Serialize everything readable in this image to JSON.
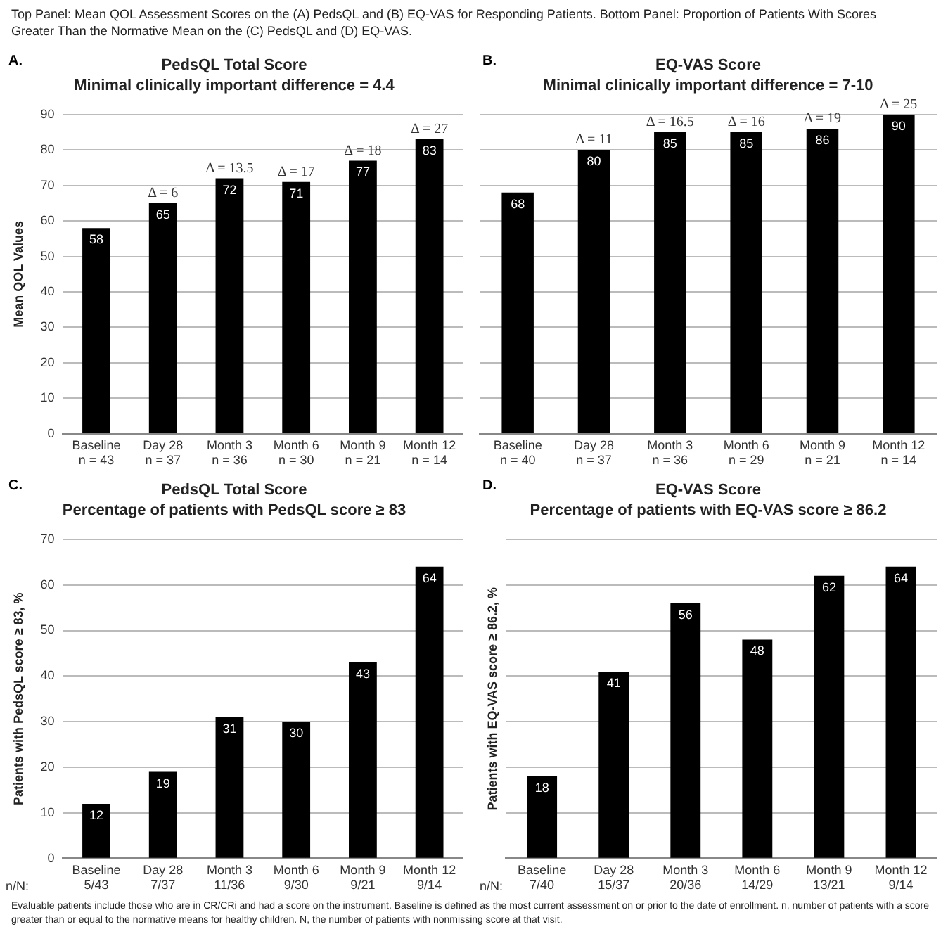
{
  "chart_data": [
    {
      "type": "bar",
      "title": "PedsQL Total Score",
      "subtitle": "Minimal clinically important difference = 4.4",
      "ylabel": "Mean QOL Values",
      "categories": [
        "Baseline\nn = 43",
        "Day 28\nn = 37",
        "Month 3\nn = 36",
        "Month 6\nn = 30",
        "Month 9\nn = 21",
        "Month 12\nn = 14"
      ],
      "values": [
        58,
        65,
        72,
        71,
        77,
        83
      ],
      "color": "#000000",
      "ylim": [
        0,
        90
      ],
      "yticks": [
        0,
        10,
        20,
        30,
        40,
        50,
        60,
        70,
        80,
        90
      ],
      "grid": "y",
      "data_labels": true,
      "annotations": [
        "Top Panel: Mean QOL Assessment Scores on the (A) PedsQL and (B) EQ-VAS for Responding Patients. Bottom Panel: Proportion of Patients With Scores Greater Than the Normative Mean on the (C) PedsQL and (D) EQ-VAS.",
        "A.",
        {
          "text": "Δ = 6",
          "x": "Day 28\nn = 37",
          "y": 65
        },
        {
          "text": "Δ = 13.5",
          "x": "Month 3\nn = 36",
          "y": 72
        },
        {
          "text": "Δ = 17",
          "x": "Month 6\nn = 30",
          "y": 71
        },
        {
          "text": "Δ = 18",
          "x": "Month 9\nn = 21",
          "y": 77
        },
        {
          "text": "Δ = 27",
          "x": "Month 12\nn = 14",
          "y": 83
        }
      ]
    },
    {
      "type": "bar",
      "title": "EQ-VAS Score",
      "subtitle": "Minimal clinically important difference = 7-10",
      "categories": [
        "Baseline\nn = 40",
        "Day 28\nn = 37",
        "Month 3\nn = 36",
        "Month 6\nn = 29",
        "Month 9\nn = 21",
        "Month 12\nn = 14"
      ],
      "values": [
        68,
        80,
        85,
        85,
        86,
        90
      ],
      "color": "#000000",
      "ylim": [
        0,
        90
      ],
      "yticks": [
        {
          "value": 0,
          "label": null
        },
        {
          "value": 10,
          "label": null
        },
        {
          "value": 20,
          "label": null
        },
        {
          "value": 30,
          "label": null
        },
        {
          "value": 40,
          "label": null
        },
        {
          "value": 50,
          "label": null
        },
        {
          "value": 60,
          "label": null
        },
        {
          "value": 70,
          "label": null
        },
        {
          "value": 80,
          "label": null
        },
        {
          "value": 90,
          "label": null
        }
      ],
      "tick_labels": "x",
      "grid": "y",
      "data_labels": true,
      "annotations": [
        "B.",
        {
          "text": "Δ = 11",
          "x": "Day 28\nn = 37",
          "y": 80
        },
        {
          "text": "Δ = 16.5",
          "x": "Month 3\nn = 36",
          "y": 85
        },
        {
          "text": "Δ = 16",
          "x": "Month 6\nn = 29",
          "y": 85
        },
        {
          "text": "Δ = 19",
          "x": "Month 9\nn = 21",
          "y": 86
        },
        {
          "text": "Δ = 25",
          "x": "Month 12\nn = 14",
          "y": 90
        }
      ]
    },
    {
      "type": "bar",
      "title": "PedsQL Total Score",
      "subtitle": "Percentage of patients with PedsQL score ≥ 83",
      "ylabel": "Patients with PedsQL score ≥ 83, %",
      "categories": [
        "Baseline\n5/43",
        "Day 28\n7/37",
        "Month 3\n11/36",
        "Month 6\n9/30",
        "Month 9\n9/21",
        "Month 12\n9/14"
      ],
      "values": [
        12,
        19,
        31,
        30,
        43,
        64
      ],
      "color": "#000000",
      "ylim": [
        0,
        70
      ],
      "yticks": [
        0,
        10,
        20,
        30,
        40,
        50,
        60,
        70
      ],
      "grid": "y",
      "data_labels": true,
      "annotations": [
        "C.",
        "n/N:"
      ]
    },
    {
      "type": "bar",
      "title": "EQ-VAS Score",
      "subtitle": "Percentage of patients with EQ-VAS score ≥ 86.2",
      "ylabel": "Patients with EQ-VAS score ≥ 86.2, %",
      "categories": [
        "Baseline\n7/40",
        "Day 28\n15/37",
        "Month 3\n20/36",
        "Month 6\n14/29",
        "Month 9\n13/21",
        "Month 12\n9/14"
      ],
      "values": [
        18,
        41,
        56,
        48,
        62,
        64
      ],
      "color": "#000000",
      "tick_labels": "x",
      "grid": "y",
      "data_labels": true,
      "annotations": [
        "D.",
        "n/N:",
        "Evaluable patients include those who are in CR/CRi and had a score on the instrument. Baseline is defined as the most current assessment on or prior to the date of enrollment. n, number of patients with a score greater than or equal to the normative means for healthy children. N, the number of patients with nonmissing score at that visit."
      ]
    }
  ]
}
